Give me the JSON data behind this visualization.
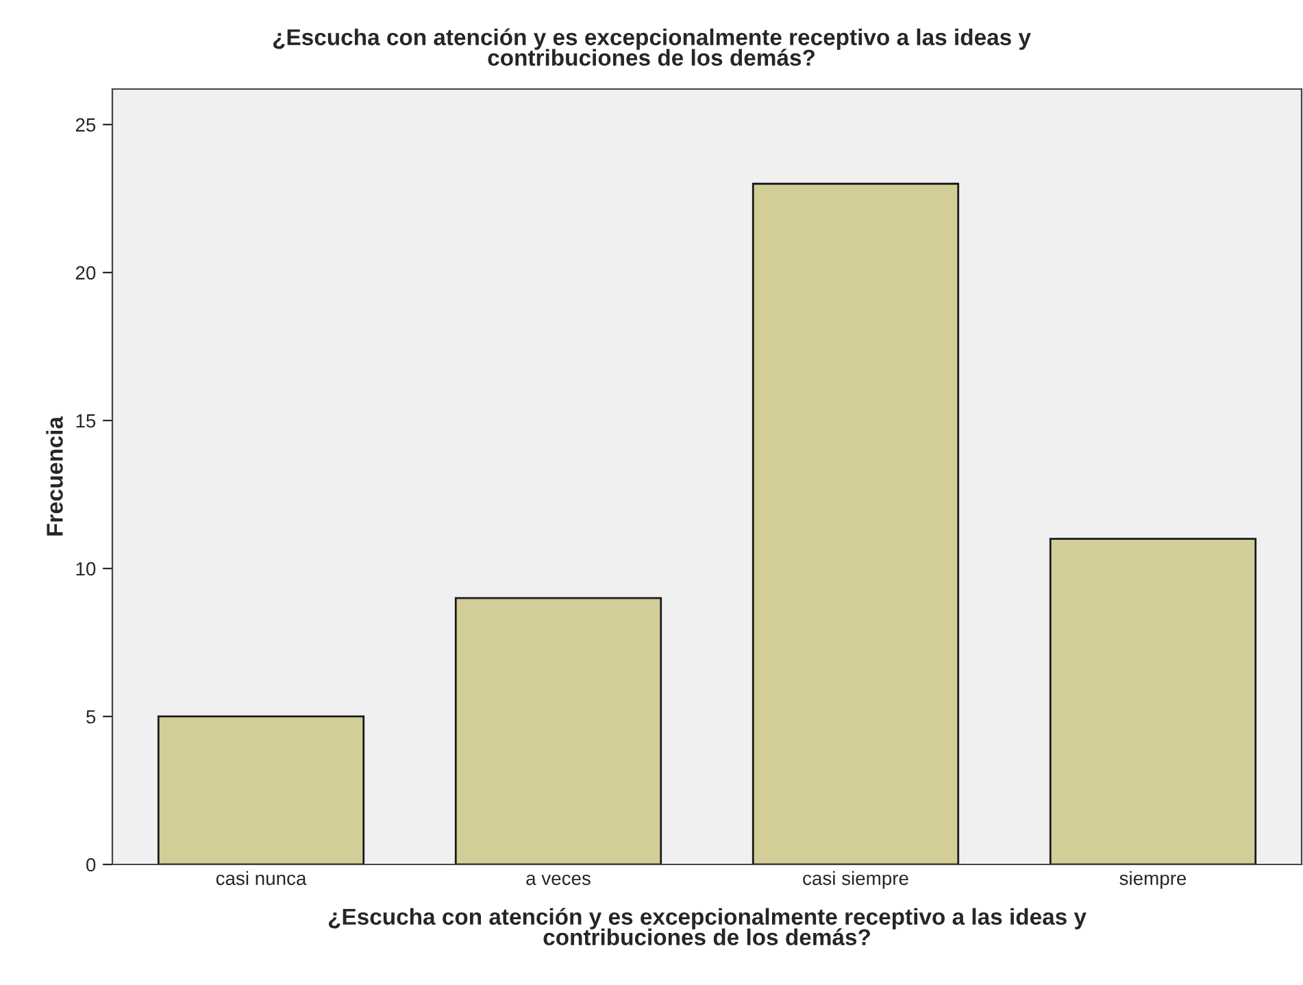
{
  "chart_data": {
    "type": "bar",
    "title": "¿Escucha con atención y es excepcionalmente receptivo a las ideas y contribuciones de los demás?",
    "xlabel": "¿Escucha con atención y es excepcionalmente receptivo a las ideas y contribuciones de los demás?",
    "ylabel": "Frecuencia",
    "categories": [
      "casi nunca",
      "a veces",
      "casi siempre",
      "siempre"
    ],
    "values": [
      5,
      9,
      23,
      11
    ],
    "color": "#d3ce97",
    "ylim": [
      0,
      26.2
    ],
    "yticks": [
      0,
      5,
      10,
      15,
      20,
      25
    ],
    "grid": false,
    "legend": false
  }
}
